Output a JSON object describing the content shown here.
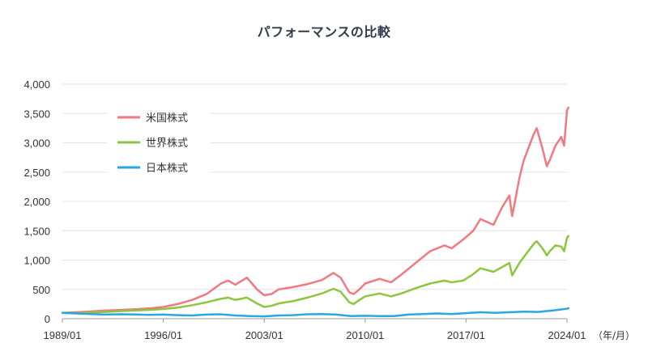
{
  "chart_data": {
    "type": "line",
    "title": "パフォーマンスの比較",
    "x_unit": "（年/月）",
    "x_ticks": [
      "1989/01",
      "1996/01",
      "2003/01",
      "2010/01",
      "2017/01",
      "2024/01"
    ],
    "y_ticks": [
      "0",
      "500",
      "1,000",
      "1,500",
      "2,000",
      "2,500",
      "3,000",
      "3,500",
      "4,000"
    ],
    "ylim": [
      0,
      4000
    ],
    "xlim": [
      1989.0,
      2024.0
    ],
    "grid": true,
    "legend_position": "top-left",
    "series": [
      {
        "name": "米国株式",
        "color": "#f17a80",
        "points": [
          [
            1989.0,
            100
          ],
          [
            1990.0,
            110
          ],
          [
            1991.0,
            125
          ],
          [
            1992.0,
            140
          ],
          [
            1993.0,
            150
          ],
          [
            1994.0,
            160
          ],
          [
            1995.0,
            175
          ],
          [
            1996.0,
            200
          ],
          [
            1997.0,
            250
          ],
          [
            1998.0,
            320
          ],
          [
            1999.0,
            420
          ],
          [
            2000.0,
            600
          ],
          [
            2000.5,
            650
          ],
          [
            2001.0,
            580
          ],
          [
            2001.8,
            700
          ],
          [
            2002.5,
            500
          ],
          [
            2003.0,
            400
          ],
          [
            2003.5,
            420
          ],
          [
            2004.0,
            500
          ],
          [
            2005.0,
            540
          ],
          [
            2006.0,
            590
          ],
          [
            2007.0,
            660
          ],
          [
            2007.8,
            780
          ],
          [
            2008.3,
            700
          ],
          [
            2008.9,
            450
          ],
          [
            2009.2,
            420
          ],
          [
            2009.6,
            500
          ],
          [
            2010.0,
            600
          ],
          [
            2011.0,
            680
          ],
          [
            2011.8,
            620
          ],
          [
            2012.5,
            750
          ],
          [
            2013.5,
            950
          ],
          [
            2014.5,
            1150
          ],
          [
            2015.5,
            1250
          ],
          [
            2016.0,
            1200
          ],
          [
            2016.8,
            1350
          ],
          [
            2017.5,
            1500
          ],
          [
            2018.0,
            1700
          ],
          [
            2018.9,
            1600
          ],
          [
            2019.5,
            1900
          ],
          [
            2020.0,
            2100
          ],
          [
            2020.2,
            1750
          ],
          [
            2020.7,
            2400
          ],
          [
            2021.0,
            2700
          ],
          [
            2021.7,
            3150
          ],
          [
            2021.9,
            3250
          ],
          [
            2022.3,
            2900
          ],
          [
            2022.6,
            2600
          ],
          [
            2022.8,
            2700
          ],
          [
            2023.2,
            2950
          ],
          [
            2023.6,
            3100
          ],
          [
            2023.8,
            2950
          ],
          [
            2024.0,
            3550
          ],
          [
            2024.1,
            3600
          ]
        ]
      },
      {
        "name": "世界株式",
        "color": "#8cc63f",
        "points": [
          [
            1989.0,
            100
          ],
          [
            1990.0,
            95
          ],
          [
            1991.0,
            105
          ],
          [
            1992.0,
            115
          ],
          [
            1993.0,
            130
          ],
          [
            1994.0,
            140
          ],
          [
            1995.0,
            150
          ],
          [
            1996.0,
            165
          ],
          [
            1997.0,
            190
          ],
          [
            1998.0,
            230
          ],
          [
            1999.0,
            280
          ],
          [
            2000.0,
            340
          ],
          [
            2000.5,
            360
          ],
          [
            2001.0,
            320
          ],
          [
            2001.8,
            360
          ],
          [
            2002.5,
            260
          ],
          [
            2003.0,
            200
          ],
          [
            2003.5,
            220
          ],
          [
            2004.0,
            260
          ],
          [
            2005.0,
            300
          ],
          [
            2006.0,
            360
          ],
          [
            2007.0,
            430
          ],
          [
            2007.8,
            510
          ],
          [
            2008.3,
            460
          ],
          [
            2008.9,
            280
          ],
          [
            2009.2,
            250
          ],
          [
            2009.6,
            320
          ],
          [
            2010.0,
            380
          ],
          [
            2011.0,
            430
          ],
          [
            2011.8,
            380
          ],
          [
            2012.5,
            430
          ],
          [
            2013.5,
            520
          ],
          [
            2014.5,
            600
          ],
          [
            2015.5,
            650
          ],
          [
            2016.0,
            620
          ],
          [
            2016.8,
            650
          ],
          [
            2017.5,
            760
          ],
          [
            2018.0,
            860
          ],
          [
            2018.9,
            800
          ],
          [
            2019.5,
            880
          ],
          [
            2020.0,
            950
          ],
          [
            2020.2,
            740
          ],
          [
            2020.7,
            950
          ],
          [
            2021.0,
            1050
          ],
          [
            2021.7,
            1280
          ],
          [
            2021.9,
            1320
          ],
          [
            2022.3,
            1200
          ],
          [
            2022.6,
            1080
          ],
          [
            2022.8,
            1150
          ],
          [
            2023.2,
            1250
          ],
          [
            2023.6,
            1230
          ],
          [
            2023.8,
            1150
          ],
          [
            2024.0,
            1380
          ],
          [
            2024.1,
            1410
          ]
        ]
      },
      {
        "name": "日本株式",
        "color": "#29a8e0",
        "points": [
          [
            1989.0,
            100
          ],
          [
            1990.0,
            90
          ],
          [
            1991.0,
            80
          ],
          [
            1992.0,
            70
          ],
          [
            1993.0,
            75
          ],
          [
            1994.0,
            72
          ],
          [
            1995.0,
            65
          ],
          [
            1996.0,
            70
          ],
          [
            1997.0,
            60
          ],
          [
            1998.0,
            55
          ],
          [
            1999.0,
            70
          ],
          [
            2000.0,
            75
          ],
          [
            2001.0,
            55
          ],
          [
            2002.0,
            45
          ],
          [
            2003.0,
            40
          ],
          [
            2004.0,
            55
          ],
          [
            2005.0,
            60
          ],
          [
            2006.0,
            75
          ],
          [
            2007.0,
            80
          ],
          [
            2008.0,
            70
          ],
          [
            2009.0,
            45
          ],
          [
            2010.0,
            50
          ],
          [
            2011.0,
            45
          ],
          [
            2012.0,
            45
          ],
          [
            2013.0,
            70
          ],
          [
            2014.0,
            80
          ],
          [
            2015.0,
            90
          ],
          [
            2016.0,
            80
          ],
          [
            2017.0,
            95
          ],
          [
            2018.0,
            110
          ],
          [
            2019.0,
            100
          ],
          [
            2020.0,
            110
          ],
          [
            2021.0,
            120
          ],
          [
            2022.0,
            115
          ],
          [
            2023.0,
            140
          ],
          [
            2024.0,
            170
          ],
          [
            2024.1,
            180
          ]
        ]
      }
    ]
  }
}
